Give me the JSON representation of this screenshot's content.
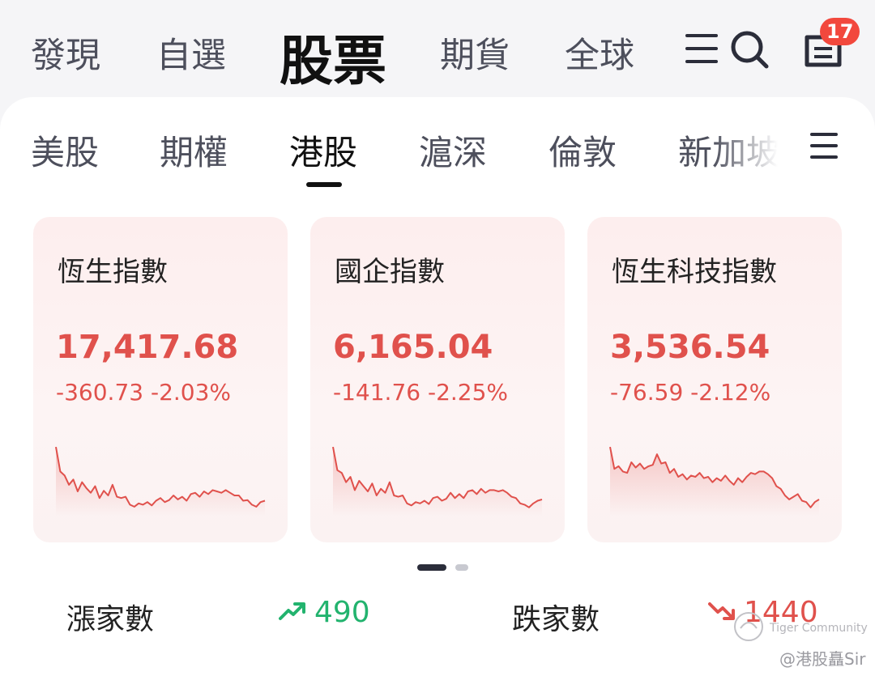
{
  "top_nav": {
    "items": [
      "發現",
      "自選",
      "股票",
      "期貨",
      "全球"
    ],
    "active": "股票",
    "badge": "17"
  },
  "market_tabs": {
    "items": [
      "美股",
      "期權",
      "港股",
      "滬深",
      "倫敦",
      "新加坡"
    ],
    "active": "港股"
  },
  "indices": [
    {
      "name": "恆生指數",
      "price": "17,417.68",
      "change": "-360.73 -2.03%",
      "trend": [
        0.95,
        0.58,
        0.52,
        0.38,
        0.46,
        0.28,
        0.42,
        0.33,
        0.26,
        0.36,
        0.18,
        0.29,
        0.22,
        0.38,
        0.2,
        0.18,
        0.2,
        0.08,
        0.05,
        0.1,
        0.08,
        0.12,
        0.07,
        0.14,
        0.18,
        0.12,
        0.15,
        0.22,
        0.16,
        0.2,
        0.14,
        0.24,
        0.26,
        0.2,
        0.28,
        0.24,
        0.3,
        0.28,
        0.26,
        0.3,
        0.26,
        0.22,
        0.22,
        0.14,
        0.15,
        0.08,
        0.05,
        0.12,
        0.14
      ]
    },
    {
      "name": "國企指數",
      "price": "6,165.04",
      "change": "-141.76 -2.25%",
      "trend": [
        0.95,
        0.6,
        0.56,
        0.42,
        0.5,
        0.3,
        0.44,
        0.36,
        0.28,
        0.4,
        0.22,
        0.32,
        0.26,
        0.42,
        0.22,
        0.2,
        0.22,
        0.1,
        0.07,
        0.12,
        0.1,
        0.14,
        0.09,
        0.18,
        0.2,
        0.14,
        0.17,
        0.26,
        0.18,
        0.24,
        0.18,
        0.28,
        0.3,
        0.24,
        0.32,
        0.26,
        0.3,
        0.3,
        0.28,
        0.3,
        0.26,
        0.2,
        0.18,
        0.1,
        0.08,
        0.04,
        0.1,
        0.14,
        0.16
      ]
    },
    {
      "name": "恆生科技指數",
      "price": "3,536.54",
      "change": "-76.59 -2.12%",
      "trend": [
        0.95,
        0.62,
        0.66,
        0.58,
        0.56,
        0.72,
        0.64,
        0.7,
        0.62,
        0.66,
        0.68,
        0.84,
        0.7,
        0.72,
        0.56,
        0.62,
        0.5,
        0.54,
        0.46,
        0.52,
        0.5,
        0.56,
        0.48,
        0.5,
        0.42,
        0.48,
        0.44,
        0.52,
        0.44,
        0.38,
        0.48,
        0.42,
        0.5,
        0.56,
        0.54,
        0.58,
        0.58,
        0.54,
        0.48,
        0.36,
        0.32,
        0.22,
        0.16,
        0.2,
        0.24,
        0.14,
        0.12,
        0.04,
        0.12,
        0.16
      ]
    }
  ],
  "breadth": {
    "up_label": "漲家數",
    "up_value": "490",
    "down_label": "跌家數",
    "down_value": "1440"
  },
  "watermark": {
    "brand": "Tiger Community",
    "author": "@港股矗Sir"
  },
  "colors": {
    "red": "#e0514c",
    "green": "#22b36e",
    "dark": "#2b2d3a"
  }
}
